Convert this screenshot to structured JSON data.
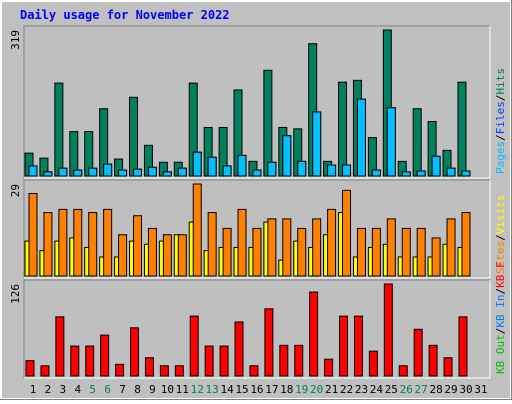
{
  "chart_data": [
    {
      "type": "bar",
      "title": "Daily usage for November 2022",
      "y_label_separator": "/",
      "ylim": [
        0,
        319
      ],
      "yticks": [
        319
      ],
      "series": [
        {
          "name": "Hits",
          "color": "#00805c",
          "values": [
            50,
            39,
            203,
            97,
            97,
            147,
            37,
            172,
            67,
            30,
            30,
            203,
            106,
            106,
            188,
            32,
            231,
            106,
            103,
            289,
            32,
            205,
            209,
            84,
            319,
            32,
            147,
            119,
            56,
            205,
            null
          ]
        },
        {
          "name": "Files",
          "color": "#0040ff",
          "values": [
            22,
            9,
            17,
            13,
            17,
            26,
            13,
            15,
            19,
            9,
            17,
            52,
            41,
            22,
            45,
            13,
            30,
            88,
            32,
            140,
            24,
            24,
            168,
            13,
            149,
            9,
            11,
            43,
            17,
            11,
            null
          ]
        },
        {
          "name": "Pages",
          "color": "#00c0ff",
          "values": [
            22,
            9,
            17,
            13,
            17,
            26,
            13,
            15,
            19,
            9,
            17,
            52,
            41,
            22,
            45,
            13,
            30,
            88,
            32,
            140,
            24,
            24,
            168,
            13,
            149,
            9,
            11,
            43,
            17,
            11,
            null
          ]
        }
      ]
    },
    {
      "type": "bar",
      "y_label_separator": "/",
      "ylim": [
        0,
        29
      ],
      "yticks": [
        29
      ],
      "series": [
        {
          "name": "Visits",
          "color": "#ffff00",
          "values": [
            11,
            8,
            11,
            12,
            9,
            6,
            6,
            11,
            10,
            11,
            13,
            17,
            8,
            9,
            9,
            9,
            17,
            5,
            11,
            9,
            13,
            20,
            6,
            9,
            10,
            6,
            6,
            6,
            10,
            9,
            null
          ]
        },
        {
          "name": "Sites",
          "color": "#ff8000",
          "values": [
            26,
            20,
            21,
            21,
            20,
            21,
            13,
            19,
            15,
            13,
            13,
            29,
            20,
            15,
            21,
            15,
            18,
            18,
            15,
            18,
            21,
            27,
            15,
            15,
            18,
            15,
            15,
            12,
            18,
            20,
            null
          ]
        }
      ]
    },
    {
      "type": "bar",
      "y_label_separator": "/",
      "ylim": [
        0,
        126
      ],
      "yticks": [
        126
      ],
      "categories": [
        "1",
        "2",
        "3",
        "4",
        "5",
        "6",
        "7",
        "8",
        "9",
        "10",
        "11",
        "12",
        "13",
        "14",
        "15",
        "16",
        "17",
        "18",
        "19",
        "20",
        "21",
        "22",
        "23",
        "24",
        "25",
        "26",
        "27",
        "28",
        "29",
        "30",
        "31"
      ],
      "category_colors": [
        "#000000",
        "#000000",
        "#000000",
        "#000000",
        "#00805c",
        "#00805c",
        "#000000",
        "#000000",
        "#000000",
        "#000000",
        "#000000",
        "#00805c",
        "#00805c",
        "#000000",
        "#000000",
        "#000000",
        "#000000",
        "#000000",
        "#00805c",
        "#00805c",
        "#000000",
        "#000000",
        "#000000",
        "#000000",
        "#000000",
        "#00805c",
        "#00805c",
        "#000000",
        "#000000",
        "#000000",
        "#000000"
      ],
      "series": [
        {
          "name": "KB F",
          "color": "#ff0000",
          "values": [
            21,
            14,
            81,
            41,
            41,
            56,
            16,
            66,
            25,
            14,
            14,
            82,
            41,
            41,
            74,
            14,
            92,
            42,
            42,
            115,
            23,
            82,
            82,
            34,
            126,
            14,
            64,
            42,
            25,
            81,
            null
          ]
        },
        {
          "name": "KB In",
          "color": "#0080ff",
          "values": [
            null,
            null,
            null,
            null,
            null,
            null,
            null,
            null,
            null,
            null,
            null,
            null,
            null,
            null,
            null,
            null,
            null,
            null,
            null,
            null,
            null,
            null,
            null,
            null,
            null,
            null,
            null,
            null,
            null,
            null,
            null
          ]
        },
        {
          "name": "KB Out",
          "color": "#00c000",
          "values": [
            null,
            null,
            null,
            null,
            null,
            null,
            null,
            null,
            null,
            null,
            null,
            null,
            null,
            null,
            null,
            null,
            null,
            null,
            null,
            null,
            null,
            null,
            null,
            null,
            null,
            null,
            null,
            null,
            null,
            null,
            null
          ]
        }
      ]
    }
  ]
}
